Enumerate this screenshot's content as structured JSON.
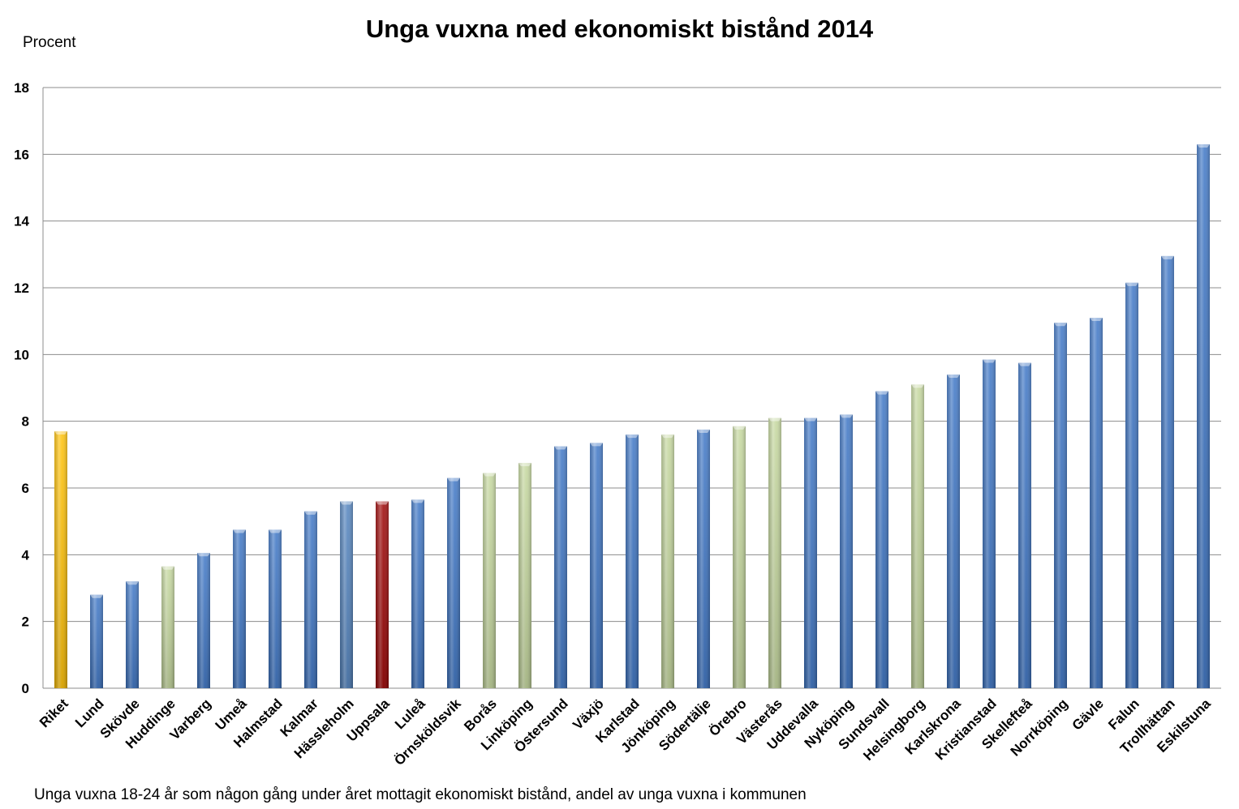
{
  "chart_data": {
    "type": "bar",
    "title": "Unga vuxna med ekonomiskt bistånd 2014",
    "ylabel": "Procent",
    "xlabel": "",
    "footnote": "Unga vuxna 18-24 år som någon gång under året mottagit ekonomiskt bistånd, andel av unga vuxna i kommunen",
    "ylim": [
      0,
      18
    ],
    "yticks": [
      0,
      2,
      4,
      6,
      8,
      10,
      12,
      14,
      16,
      18
    ],
    "grid": true,
    "categories": [
      "Riket",
      "Lund",
      "Skövde",
      "Huddinge",
      "Varberg",
      "Umeå",
      "Halmstad",
      "Kalmar",
      "Hässleholm",
      "Uppsala",
      "Luleå",
      "Örnsköldsvik",
      "Borås",
      "Linköping",
      "Östersund",
      "Växjö",
      "Karlstad",
      "Jönköping",
      "Södertälje",
      "Örebro",
      "Västerås",
      "Uddevalla",
      "Nyköping",
      "Sundsvall",
      "Helsingborg",
      "Karlskrona",
      "Kristianstad",
      "Skellefteå",
      "Norrköping",
      "Gävle",
      "Falun",
      "Trollhättan",
      "Eskilstuna"
    ],
    "values": [
      7.7,
      2.8,
      3.2,
      3.65,
      4.05,
      4.75,
      4.75,
      5.3,
      5.6,
      5.6,
      5.65,
      6.3,
      6.45,
      6.75,
      7.25,
      7.35,
      7.6,
      7.6,
      7.75,
      7.85,
      8.1,
      8.1,
      8.2,
      8.9,
      9.1,
      9.4,
      9.85,
      9.75,
      10.95,
      11.1,
      12.15,
      12.95,
      16.3
    ],
    "bar_colors": [
      "#ffc000",
      "#3a73c4",
      "#3a73c4",
      "#c3d69b",
      "#3a73c4",
      "#3a73c4",
      "#3a73c4",
      "#3a73c4",
      "#4f81bd",
      "#9b0000",
      "#3a73c4",
      "#3a73c4",
      "#c3d69b",
      "#c3d69b",
      "#3a73c4",
      "#3a73c4",
      "#3a73c4",
      "#c3d69b",
      "#3a73c4",
      "#c3d69b",
      "#c3d69b",
      "#3a73c4",
      "#3a73c4",
      "#3a73c4",
      "#c3d69b",
      "#3a73c4",
      "#3a73c4",
      "#3a73c4",
      "#3a73c4",
      "#3a73c4",
      "#3a73c4",
      "#3a73c4",
      "#3a73c4"
    ]
  }
}
